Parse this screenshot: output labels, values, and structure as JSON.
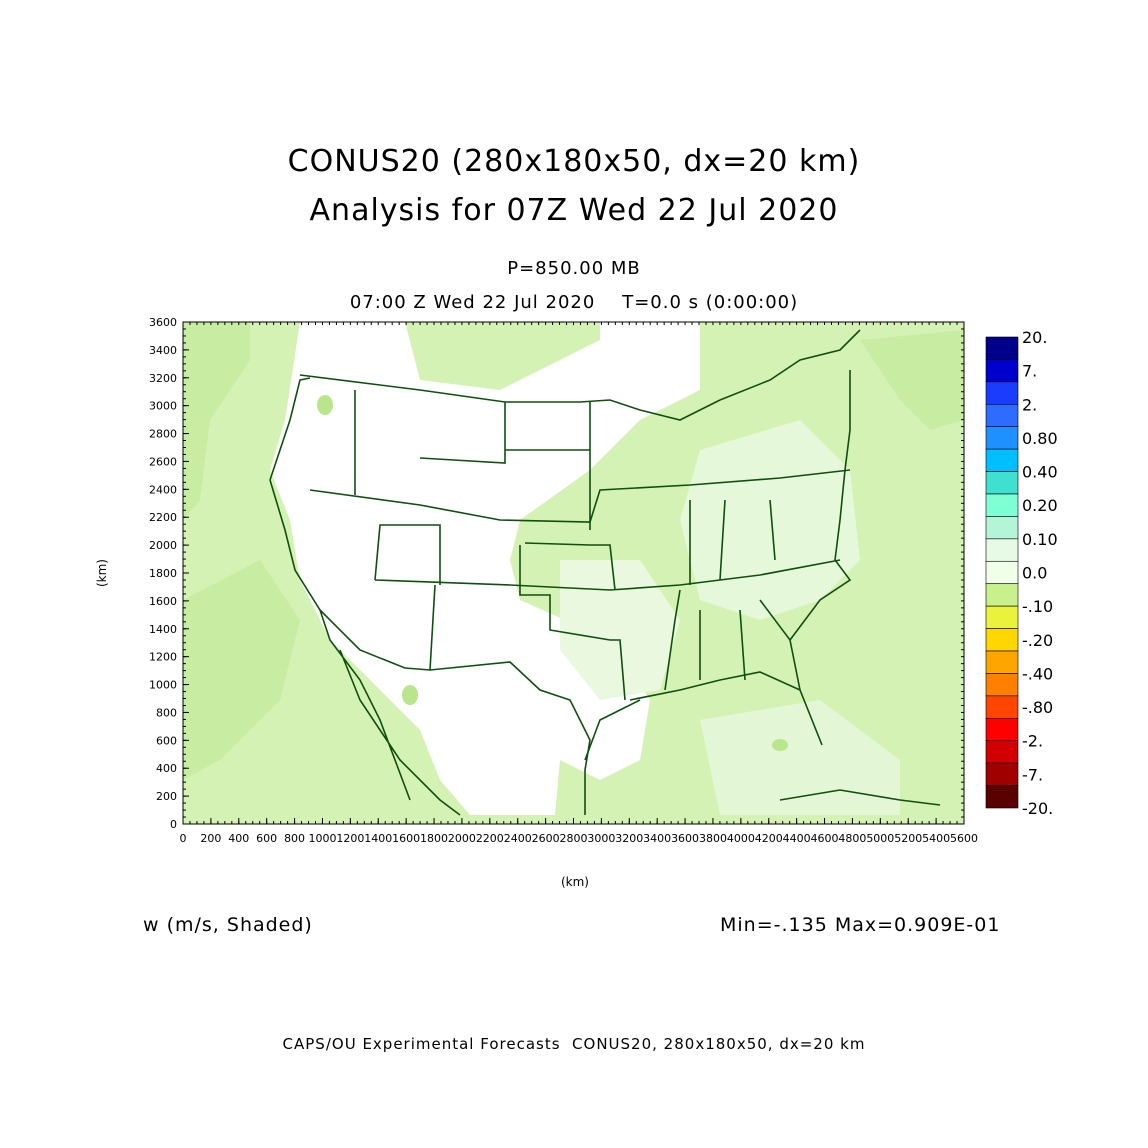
{
  "header": {
    "title_line1": "CONUS20 (280x180x50, dx=20 km)",
    "title_line2": "Analysis for 07Z Wed 22 Jul 2020",
    "pressure": "P=850.00 MB",
    "time_line": "07:00 Z Wed 22 Jul 2020    T=0.0 s (0:00:00)"
  },
  "axes": {
    "x_label": "(km)",
    "y_label": "(km)",
    "x_ticks": [
      "0",
      "200",
      "400",
      "600",
      "800",
      "1000",
      "1200",
      "1400",
      "1600",
      "1800",
      "2000",
      "2200",
      "2400",
      "2600",
      "2800",
      "3000",
      "3200",
      "3400",
      "3600",
      "3800",
      "4000",
      "4200",
      "4400",
      "4600",
      "4800",
      "5000",
      "5200",
      "5400",
      "5600"
    ],
    "y_ticks": [
      "0",
      "200",
      "400",
      "600",
      "800",
      "1000",
      "1200",
      "1400",
      "1600",
      "1800",
      "2000",
      "2200",
      "2400",
      "2600",
      "2800",
      "3000",
      "3200",
      "3400",
      "3600"
    ]
  },
  "colorbar": {
    "labels": [
      "20.",
      "7.",
      "2.",
      "0.80",
      "0.40",
      "0.20",
      "0.10",
      "0.0",
      "-.10",
      "-.20",
      "-.40",
      "-.80",
      "-2.",
      "-7.",
      "-20."
    ],
    "colors": [
      "#00008b",
      "#0000cd",
      "#1a3cff",
      "#2e6bff",
      "#1e90ff",
      "#00bfff",
      "#40e0d0",
      "#7fffd4",
      "#b4f5d8",
      "#e6fae6",
      "#f0ffe8",
      "#c8f08c",
      "#eaf23c",
      "#ffd700",
      "#ffa500",
      "#ff7f00",
      "#ff4500",
      "#ff0000",
      "#d20000",
      "#a00000",
      "#5a0000"
    ]
  },
  "bottom": {
    "variable": "w (m/s, Shaded)",
    "minmax": "Min=-.135 Max=0.909E-01",
    "footer": "CAPS/OU Experimental Forecasts  CONUS20, 280x180x50, dx=20 km"
  },
  "map": {
    "fill_color": "#d4f2b4",
    "border_color": "#0f4f0f"
  }
}
